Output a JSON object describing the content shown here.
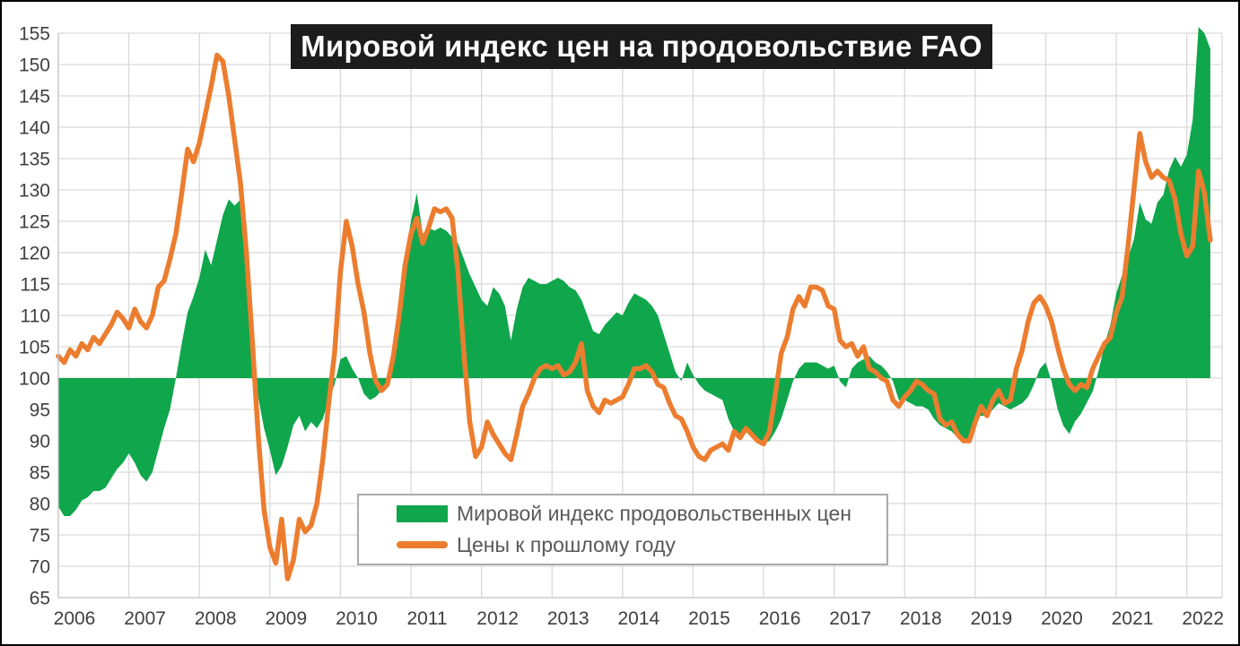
{
  "title": "Мировой индекс цен на продовольствие FAO",
  "colors": {
    "area_green": "#0fa64c",
    "line_orange": "#ec7d2f",
    "grid": "#d9d9d9",
    "axis": "#c6c6c6",
    "tick_label": "#404040",
    "title_bg": "#1c1c1c",
    "title_fg": "#ffffff",
    "legend_border": "#ababab",
    "legend_text": "#595959",
    "frame_border": "#000000",
    "background": "#ffffff"
  },
  "legend": {
    "items": [
      {
        "label": "Мировой индекс продовольственных цен",
        "swatch": "area",
        "color": "#0fa64c"
      },
      {
        "label": "Цены к прошлому году",
        "swatch": "line",
        "color": "#ec7d2f"
      }
    ],
    "position": "inside-bottom-center"
  },
  "chart_data": {
    "type": "area+line",
    "title": "Мировой индекс цен на продовольствие FAO",
    "xlabel": "",
    "ylabel": "",
    "x_start": "2006-01",
    "x_end": "2022-05",
    "x_frequency": "monthly",
    "x_domain_end": "2022-06",
    "baseline": 100,
    "ylim": [
      65,
      155
    ],
    "grid": "both",
    "y_ticks": [
      65,
      70,
      75,
      80,
      85,
      90,
      95,
      100,
      105,
      110,
      115,
      120,
      125,
      130,
      135,
      140,
      145,
      150,
      155
    ],
    "x_ticks": [
      "2006",
      "2007",
      "2008",
      "2009",
      "2010",
      "2011",
      "2012",
      "2013",
      "2014",
      "2015",
      "2016",
      "2017",
      "2018",
      "2019",
      "2020",
      "2021",
      "2022"
    ],
    "series": [
      {
        "name": "Мировой индекс продовольственных цен",
        "type": "area",
        "fill_to": 100,
        "color": "#0fa64c",
        "values": [
          79.5,
          78,
          78,
          79,
          80.5,
          81,
          82,
          82,
          82.5,
          84,
          85.5,
          86.5,
          88,
          86.5,
          84.5,
          83.5,
          85,
          88.5,
          92,
          95,
          100,
          105.5,
          110.5,
          113,
          116,
          120.5,
          118,
          122,
          126,
          128.5,
          127.5,
          128.5,
          119,
          107,
          97,
          92,
          88.5,
          84.5,
          86,
          89,
          92.5,
          94,
          91.5,
          93,
          92,
          93.5,
          96.5,
          99,
          103,
          103.5,
          101.5,
          100,
          97.5,
          96.5,
          97,
          98,
          99.5,
          103,
          110,
          119.5,
          125,
          129.5,
          123,
          124,
          123.5,
          124,
          123.5,
          122.5,
          121.5,
          119,
          116.5,
          114.5,
          112.5,
          111.5,
          114.5,
          113.5,
          111.5,
          106,
          111,
          114.5,
          116,
          115.5,
          115,
          115,
          115.5,
          116,
          115.5,
          114.5,
          114,
          112.5,
          110,
          107.5,
          107,
          108.5,
          109.5,
          110.5,
          110,
          112,
          113.5,
          113,
          112.5,
          111.5,
          110,
          107,
          104,
          101,
          99.5,
          102.5,
          100.5,
          99,
          98,
          97.5,
          97,
          96.5,
          93.5,
          91.5,
          91,
          91.5,
          90.5,
          90,
          89.5,
          90,
          91.5,
          93.5,
          96.5,
          99.5,
          101.5,
          102.5,
          102.5,
          102.5,
          102,
          101.5,
          102,
          99.5,
          98.5,
          101.5,
          102.5,
          103,
          103.5,
          102.5,
          102,
          101,
          99.5,
          96.5,
          96.5,
          96,
          95.5,
          95.5,
          95,
          93.5,
          92.5,
          92,
          91.5,
          90.5,
          90,
          90,
          93.5,
          94,
          94,
          95,
          96,
          95.5,
          95,
          95.5,
          96,
          97,
          99,
          101.5,
          102.5,
          99.4,
          95.1,
          92.4,
          91.1,
          93.1,
          94.3,
          96.1,
          97.9,
          101.2,
          105.3,
          108.5,
          113.5,
          116.4,
          119.2,
          122.1,
          128,
          125.3,
          124.6,
          128,
          129.2,
          133.2,
          135.3,
          133.7,
          135.6,
          141.1,
          156,
          155,
          152.5
        ]
      },
      {
        "name": "Цены к прошлому году",
        "type": "line",
        "color": "#ec7d2f",
        "values": [
          103.5,
          102.5,
          104.5,
          103.5,
          105.5,
          104.5,
          106.5,
          105.5,
          107,
          108.5,
          110.5,
          109.5,
          108,
          111,
          109,
          108,
          110,
          114.5,
          115.5,
          119,
          123,
          129.5,
          136.5,
          134.5,
          137.5,
          142,
          146.5,
          151.5,
          150.5,
          145,
          138,
          131,
          120,
          106,
          91,
          79,
          73,
          70.5,
          77.5,
          68,
          71,
          77.5,
          75.5,
          76.5,
          80,
          87,
          96,
          104,
          117,
          125,
          121,
          115,
          110.5,
          104,
          99.5,
          98,
          99,
          103.5,
          110,
          118,
          123,
          125.5,
          121.5,
          124,
          127,
          126.5,
          127,
          125.5,
          117,
          104,
          93,
          87.5,
          89,
          93,
          91,
          89.5,
          88,
          87,
          91,
          95.5,
          97.5,
          100,
          101.5,
          102,
          101.5,
          102,
          100.5,
          101,
          102.5,
          105.5,
          98,
          95.5,
          94.5,
          96.5,
          96,
          96.5,
          97,
          99,
          101.5,
          101.5,
          102,
          101,
          99,
          98.5,
          96,
          94,
          93.5,
          91.5,
          89,
          87.5,
          87,
          88.5,
          89,
          89.5,
          88.5,
          91.5,
          90.5,
          92,
          91,
          90,
          89.5,
          91.5,
          97.5,
          104,
          106.5,
          111,
          113,
          111.5,
          114.5,
          114.5,
          114,
          111.5,
          111,
          106,
          105,
          105.5,
          103.5,
          105,
          101.5,
          101,
          100,
          99.5,
          96.5,
          95.5,
          97,
          98,
          99.5,
          99,
          98,
          97.5,
          93.5,
          92.5,
          93,
          91,
          90,
          90,
          93,
          95.5,
          94,
          96.5,
          98,
          96,
          96.5,
          101.5,
          104.5,
          109,
          112,
          113,
          111.5,
          109,
          105,
          101.5,
          99,
          98,
          99,
          98.5,
          101.5,
          103.5,
          105.5,
          106.5,
          110.5,
          113,
          121,
          130,
          139,
          134.5,
          132,
          133,
          132,
          131.5,
          128.5,
          123,
          119.5,
          121,
          133,
          129.5,
          122
        ]
      }
    ]
  }
}
